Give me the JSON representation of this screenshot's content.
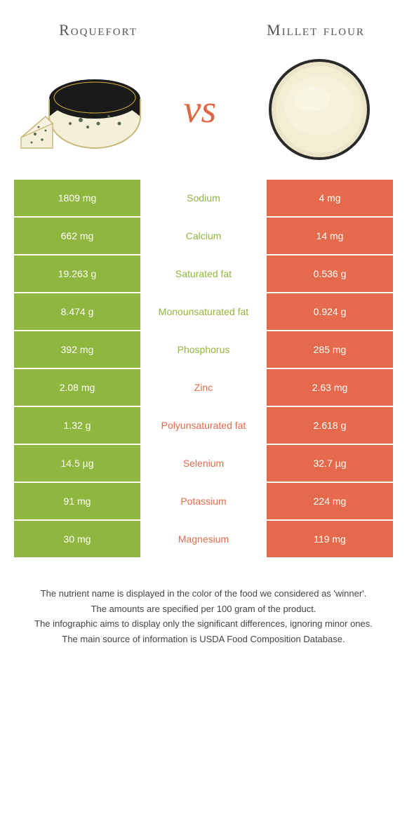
{
  "header": {
    "left_title": "Roquefort",
    "right_title": "Millet flour",
    "vs": "vs"
  },
  "colors": {
    "green": "#8fb63f",
    "orange": "#e56a4b",
    "white": "#ffffff",
    "text_mid_green": "#8fb63f",
    "text_mid_orange": "#e56a4b"
  },
  "table": {
    "rows": [
      {
        "left": "1809 mg",
        "mid": "Sodium",
        "right": "4 mg",
        "winner": "left"
      },
      {
        "left": "662 mg",
        "mid": "Calcium",
        "right": "14 mg",
        "winner": "left"
      },
      {
        "left": "19.263 g",
        "mid": "Saturated fat",
        "right": "0.536 g",
        "winner": "left"
      },
      {
        "left": "8.474 g",
        "mid": "Monounsaturated fat",
        "right": "0.924 g",
        "winner": "left"
      },
      {
        "left": "392 mg",
        "mid": "Phosphorus",
        "right": "285 mg",
        "winner": "left"
      },
      {
        "left": "2.08 mg",
        "mid": "Zinc",
        "right": "2.63 mg",
        "winner": "right"
      },
      {
        "left": "1.32 g",
        "mid": "Polyunsaturated fat",
        "right": "2.618 g",
        "winner": "right"
      },
      {
        "left": "14.5 µg",
        "mid": "Selenium",
        "right": "32.7 µg",
        "winner": "right"
      },
      {
        "left": "91 mg",
        "mid": "Potassium",
        "right": "224 mg",
        "winner": "right"
      },
      {
        "left": "30 mg",
        "mid": "Magnesium",
        "right": "119 mg",
        "winner": "right"
      }
    ]
  },
  "footnotes": [
    "The nutrient name is displayed in the color of the food we considered as 'winner'.",
    "The amounts are specified per 100 gram of the product.",
    "The infographic aims to display only the significant differences, ignoring minor ones.",
    "The main source of information is USDA Food Composition Database."
  ]
}
